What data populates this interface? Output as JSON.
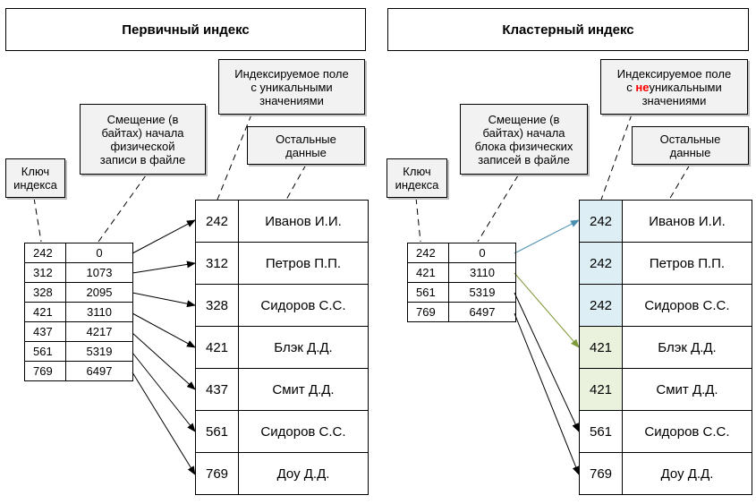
{
  "left": {
    "title": "Первичный индекс",
    "label_key": [
      "Ключ",
      "индекса"
    ],
    "label_offset": [
      "Смещение (в",
      "байтах) начала",
      "физической",
      "записи в файле"
    ],
    "label_field": [
      "Индексируемое поле",
      "с уникальными",
      "значениями"
    ],
    "label_rest": [
      "Остальные",
      "данные"
    ],
    "index_rows": [
      {
        "key": "242",
        "offset": "0"
      },
      {
        "key": "312",
        "offset": "1073"
      },
      {
        "key": "328",
        "offset": "2095"
      },
      {
        "key": "421",
        "offset": "3110"
      },
      {
        "key": "437",
        "offset": "4217"
      },
      {
        "key": "561",
        "offset": "5319"
      },
      {
        "key": "769",
        "offset": "6497"
      }
    ],
    "records": [
      {
        "key": "242",
        "name": "Иванов И.И."
      },
      {
        "key": "312",
        "name": "Петров П.П."
      },
      {
        "key": "328",
        "name": "Сидоров С.С."
      },
      {
        "key": "421",
        "name": "Блэк Д.Д."
      },
      {
        "key": "437",
        "name": "Смит Д.Д."
      },
      {
        "key": "561",
        "name": "Сидоров С.С."
      },
      {
        "key": "769",
        "name": "Доу Д.Д."
      }
    ]
  },
  "right": {
    "title": "Кластерный индекс",
    "label_key": [
      "Ключ",
      "индекса"
    ],
    "label_offset": [
      "Смещение (в",
      "байтах) начала",
      "блока физических",
      "записей в файле"
    ],
    "label_field": {
      "line1": "Индексируемое поле",
      "line2_prefix": "с ",
      "line2_highlight": "не",
      "line2_suffix": "уникальными",
      "line3": "значениями"
    },
    "label_rest": [
      "Остальные",
      "данные"
    ],
    "index_rows": [
      {
        "key": "242",
        "offset": "0"
      },
      {
        "key": "421",
        "offset": "3110"
      },
      {
        "key": "561",
        "offset": "5319"
      },
      {
        "key": "769",
        "offset": "6497"
      }
    ],
    "records": [
      {
        "key": "242",
        "name": "Иванов И.И."
      },
      {
        "key": "242",
        "name": "Петров П.П."
      },
      {
        "key": "242",
        "name": "Сидоров С.С."
      },
      {
        "key": "421",
        "name": "Блэк Д.Д."
      },
      {
        "key": "421",
        "name": "Смит Д.Д."
      },
      {
        "key": "561",
        "name": "Сидоров С.С."
      },
      {
        "key": "769",
        "name": "Доу Д.Д."
      }
    ],
    "colors": {
      "group1": "#ddeef5",
      "group2": "#eaf1dd",
      "arrow1": "#4a8fb0",
      "arrow2": "#7e9a3a"
    }
  }
}
